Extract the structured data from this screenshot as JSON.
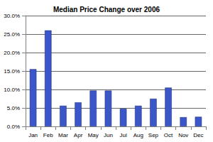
{
  "chart_data": {
    "type": "bar",
    "title": "Median Price Change over 2006",
    "categories": [
      "Jan",
      "Feb",
      "Mar",
      "Apr",
      "May",
      "Jun",
      "Jul",
      "Aug",
      "Sep",
      "Oct",
      "Nov",
      "Dec"
    ],
    "values": [
      15.5,
      26,
      5.6,
      6.5,
      9.7,
      9.7,
      4.8,
      5.6,
      7.5,
      10.5,
      2.5,
      2.6
    ],
    "color": "#3a56c8",
    "ylim": [
      0,
      30
    ],
    "yticks": [
      {
        "value": 0,
        "label": "0.0%"
      },
      {
        "value": 5,
        "label": "5.0%"
      },
      {
        "value": 10,
        "label": "10.0%"
      },
      {
        "value": 15,
        "label": "15.0%"
      },
      {
        "value": 20,
        "label": "20.0%"
      },
      {
        "value": 25,
        "label": "25.0%"
      },
      {
        "value": 30,
        "label": "30.0%"
      }
    ],
    "grid": true
  }
}
